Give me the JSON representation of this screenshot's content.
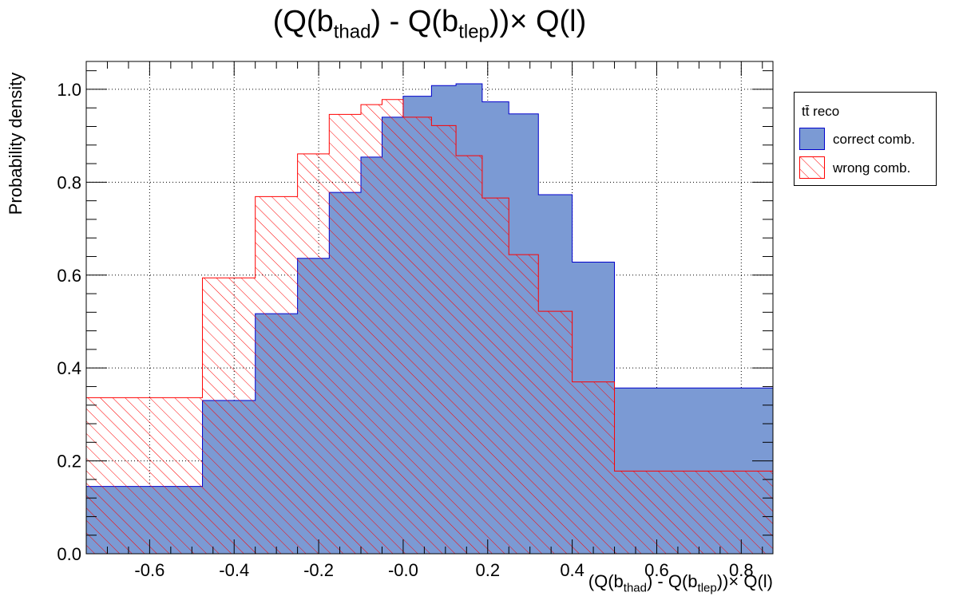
{
  "title": {
    "main": "(Q(b",
    "sub1": "thad",
    "mid": ") - Q(b",
    "sub2": "tlep",
    "end": "))× Q(l)"
  },
  "xlabel": {
    "main": "(Q(b",
    "sub1": "thad",
    "mid": ") - Q(b",
    "sub2": "tlep",
    "end": "))× Q(l)"
  },
  "ylabel": "Probability density",
  "legend": {
    "title": "tt̄ reco",
    "items": [
      {
        "label": "correct comb.",
        "color": "#7b9ad4",
        "line": "#0000cc"
      },
      {
        "label": "wrong comb.",
        "color": "#ff0000"
      }
    ]
  },
  "chart_data": {
    "type": "histogram",
    "xlim": [
      -0.75,
      0.875
    ],
    "ylim": [
      0.0,
      1.06
    ],
    "grid": true,
    "legend_position": "top-right, outside plot",
    "xticks": [
      "-0.6",
      "-0.4",
      "-0.2",
      "-0.0",
      "0.2",
      "0.4",
      "0.6",
      "0.8"
    ],
    "xtick_values": [
      -0.6,
      -0.4,
      -0.2,
      0.0,
      0.2,
      0.4,
      0.6,
      0.8
    ],
    "yticks": [
      "0.0",
      "0.2",
      "0.4",
      "0.6",
      "0.8",
      "1.0"
    ],
    "ytick_values": [
      0.0,
      0.2,
      0.4,
      0.6,
      0.8,
      1.0
    ],
    "bin_edges": [
      -0.75,
      -0.475,
      -0.35,
      -0.25,
      -0.175,
      -0.1,
      -0.05,
      0.0,
      0.067,
      0.125,
      0.187,
      0.25,
      0.32,
      0.4,
      0.5,
      0.625,
      0.875
    ],
    "series": [
      {
        "name": "correct comb.",
        "style": "filled",
        "values": [
          0.145,
          0.33,
          0.517,
          0.636,
          0.778,
          0.854,
          0.94,
          0.985,
          1.008,
          1.012,
          0.973,
          0.947,
          0.773,
          0.628,
          0.357,
          0.357
        ]
      },
      {
        "name": "wrong comb.",
        "style": "hatched",
        "values": [
          0.336,
          0.594,
          0.769,
          0.861,
          0.946,
          0.967,
          0.978,
          0.94,
          0.922,
          0.857,
          0.766,
          0.644,
          0.522,
          0.37,
          0.178,
          0.178
        ]
      }
    ]
  }
}
